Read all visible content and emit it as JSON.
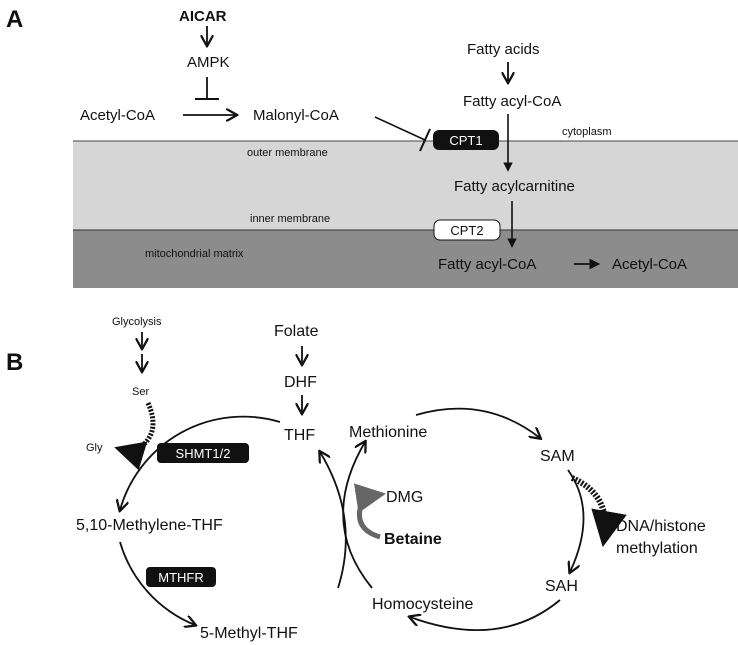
{
  "panel_a": {
    "letter": "A",
    "aicar": "AICAR",
    "ampk": "AMPK",
    "acetyl_coa": "Acetyl-CoA",
    "malonyl_coa": "Malonyl-CoA",
    "fatty_acids": "Fatty acids",
    "fatty_acyl_coa_top": "Fatty acyl-CoA",
    "cpt1": "CPT1",
    "cytoplasm": "cytoplasm",
    "outer_membrane": "outer membrane",
    "fatty_acylcarnitine": "Fatty acylcarnitine",
    "inner_membrane": "inner membrane",
    "cpt2": "CPT2",
    "mitochondrial_matrix": "mitochondrial matrix",
    "fatty_acyl_coa_matrix": "Fatty acyl-CoA",
    "acetyl_coa_matrix": "Acetyl-CoA",
    "colors": {
      "membrane_band": "#d6d6d6",
      "matrix_band": "#8c8c8c",
      "enzyme_dark": "#111111"
    }
  },
  "panel_b": {
    "letter": "B",
    "glycolysis": "Glycolysis",
    "ser": "Ser",
    "gly": "Gly",
    "shmt": "SHMT1/2",
    "folate": "Folate",
    "dhf": "DHF",
    "thf": "THF",
    "methylene_thf": "5,10-Methylene-THF",
    "mthfr": "MTHFR",
    "methyl_thf": "5-Methyl-THF",
    "methionine": "Methionine",
    "sam": "SAM",
    "dmg": "DMG",
    "betaine": "Betaine",
    "methylation_line1": "DNA/histone",
    "methylation_line2": "methylation",
    "sah": "SAH",
    "homocysteine": "Homocysteine"
  }
}
